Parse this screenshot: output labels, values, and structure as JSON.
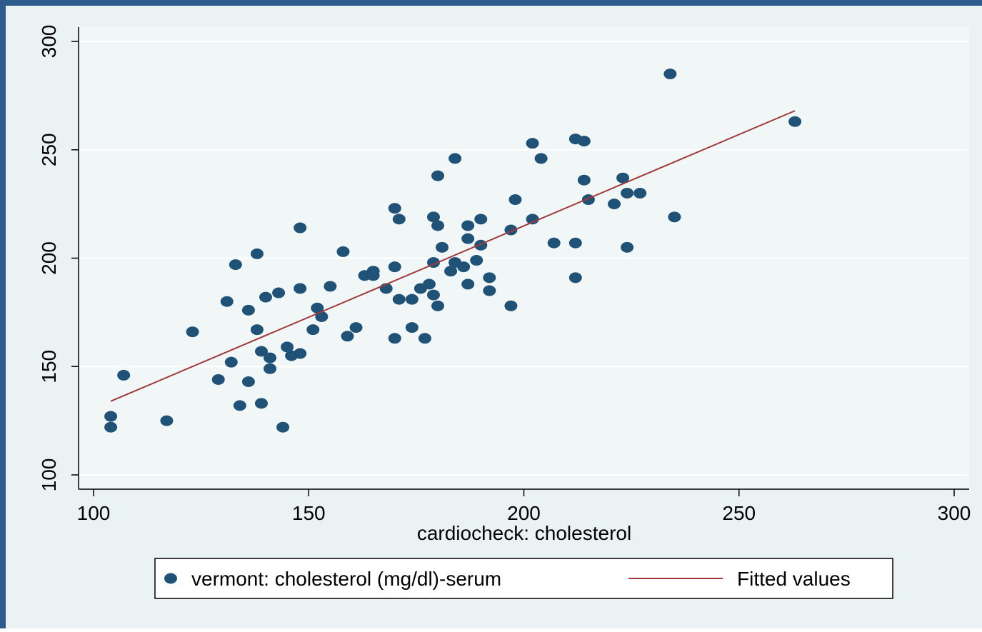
{
  "chart_data": {
    "type": "scatter",
    "xlabel": "cardiocheck: cholesterol",
    "xlim": [
      100,
      300
    ],
    "xticks": [
      100,
      150,
      200,
      250,
      300
    ],
    "ylim": [
      100,
      300
    ],
    "yticks": [
      100,
      150,
      200,
      250,
      300
    ],
    "grid": true,
    "legend": "bottom",
    "series": [
      {
        "name": "vermont: cholesterol (mg/dl)-serum",
        "type": "scatter",
        "color": "#1f5276",
        "x": [
          104,
          104,
          107,
          117,
          123,
          129,
          131,
          132,
          133,
          134,
          136,
          136,
          138,
          138,
          139,
          139,
          140,
          141,
          141,
          143,
          144,
          145,
          146,
          148,
          148,
          148,
          151,
          152,
          153,
          155,
          158,
          159,
          161,
          163,
          165,
          165,
          168,
          170,
          170,
          170,
          171,
          171,
          174,
          174,
          176,
          177,
          178,
          179,
          179,
          179,
          180,
          180,
          180,
          181,
          183,
          184,
          184,
          186,
          187,
          187,
          187,
          189,
          190,
          190,
          192,
          192,
          197,
          197,
          198,
          202,
          202,
          204,
          207,
          212,
          212,
          212,
          214,
          214,
          215,
          221,
          223,
          224,
          224,
          227,
          234,
          235,
          263
        ],
        "values": [
          127,
          122,
          146,
          125,
          166,
          144,
          180,
          152,
          197,
          132,
          176,
          143,
          202,
          167,
          157,
          133,
          182,
          154,
          149,
          184,
          122,
          159,
          155,
          156,
          186,
          214,
          167,
          177,
          173,
          187,
          203,
          164,
          168,
          192,
          192,
          194,
          186,
          163,
          196,
          223,
          181,
          218,
          168,
          181,
          186,
          163,
          188,
          183,
          198,
          219,
          178,
          215,
          238,
          205,
          194,
          198,
          246,
          196,
          188,
          209,
          215,
          199,
          206,
          218,
          185,
          191,
          178,
          213,
          227,
          218,
          253,
          246,
          207,
          191,
          207,
          255,
          236,
          254,
          227,
          225,
          237,
          205,
          230,
          230,
          285,
          219,
          263
        ]
      },
      {
        "name": "Fitted values",
        "type": "line",
        "color": "#a0393c",
        "x": [
          104,
          263
        ],
        "values": [
          134,
          268
        ]
      }
    ]
  }
}
